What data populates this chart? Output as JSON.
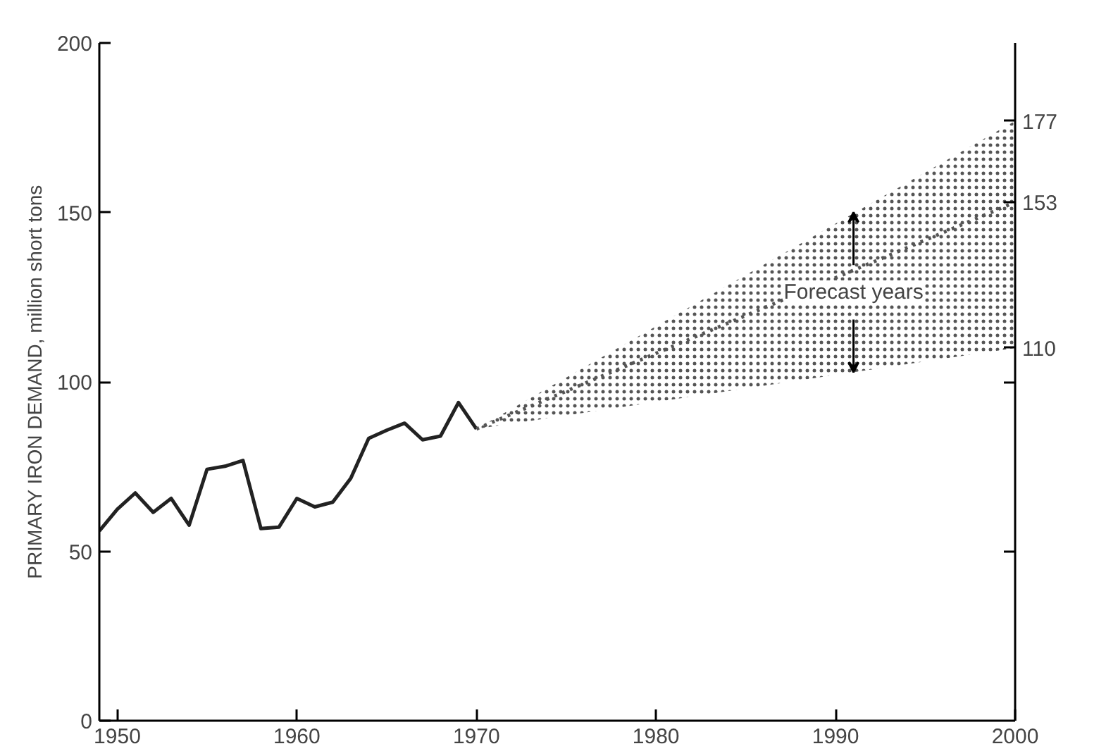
{
  "chart_data": {
    "type": "line",
    "ylabel": "PRIMARY IRON DEMAND, million short tons",
    "xlim": [
      1949,
      2000
    ],
    "xticks": [
      1950,
      1960,
      1970,
      1980,
      1990,
      2000
    ],
    "ylim": [
      0,
      200
    ],
    "yticks": [
      0,
      50,
      100,
      150,
      200
    ],
    "y2lim": [
      0,
      200
    ],
    "y2ticks": [
      {
        "value": 50,
        "label": null
      },
      {
        "value": 100,
        "label": null
      },
      110,
      153,
      177
    ],
    "grid": false,
    "marker": "none",
    "series": [
      {
        "color": "#222222",
        "line_style": "solid",
        "x": [
          1949,
          1950,
          1951,
          1952,
          1953,
          1954,
          1955,
          1956,
          1957,
          1958,
          1959,
          1960,
          1961,
          1962,
          1963,
          1964,
          1965,
          1966,
          1967,
          1968,
          1969,
          1970
        ],
        "values": [
          56,
          62.4,
          67.2,
          61.5,
          65.6,
          57.7,
          74.2,
          75.1,
          76.8,
          56.7,
          57.1,
          65.6,
          63.1,
          64.5,
          71.5,
          83.3,
          85.7,
          87.8,
          82.9,
          84,
          93.9,
          86.1
        ]
      },
      {
        "type": "line",
        "line_style": "dotted",
        "color": "#555555",
        "x": [
          1970,
          2000
        ],
        "values": [
          86.1,
          153
        ],
        "lower": [
          86.1,
          110
        ],
        "upper": [
          86.1,
          177
        ]
      }
    ],
    "annotations": [
      {
        "text": "Forecast years",
        "x": 1991,
        "y": 150
      }
    ]
  }
}
